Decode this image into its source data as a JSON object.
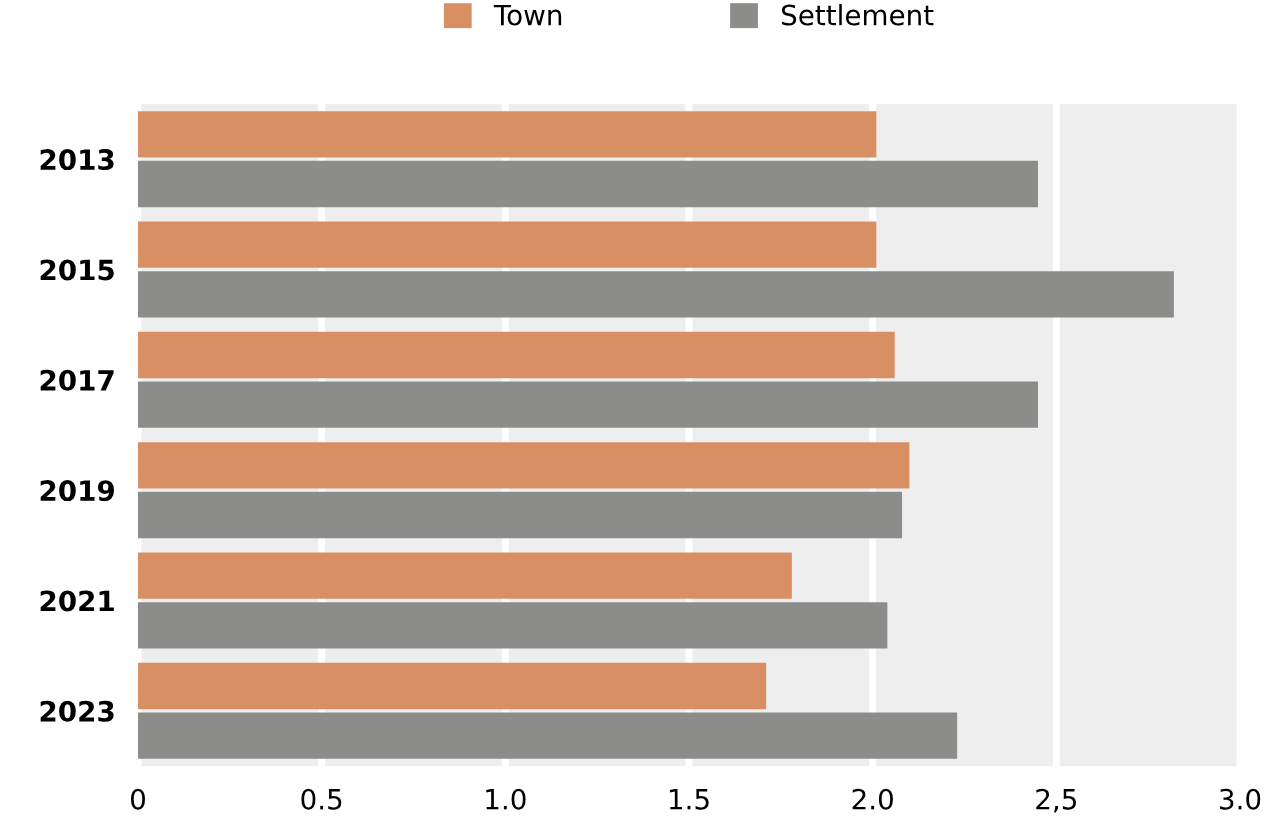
{
  "chart_data": {
    "type": "bar",
    "orientation": "horizontal",
    "categories": [
      "2013",
      "2015",
      "2017",
      "2019",
      "2021",
      "2023"
    ],
    "series": [
      {
        "name": "Town",
        "color": "#d98f64",
        "values": [
          2.01,
          2.01,
          2.06,
          2.1,
          1.78,
          1.71
        ]
      },
      {
        "name": "Settlement",
        "color": "#8c8d8a",
        "values": [
          2.45,
          2.82,
          2.45,
          2.08,
          2.04,
          2.23
        ]
      }
    ],
    "xlim": [
      0,
      3.0
    ],
    "xticks": [
      0,
      0.5,
      {
        "value": 1.0,
        "label": "1.0"
      },
      1.5,
      {
        "value": 2.0,
        "label": "2.0"
      },
      {
        "value": 2.5,
        "label": "2,5"
      },
      {
        "value": 3.0,
        "label": "3.0"
      }
    ],
    "grid": "x",
    "legend": "top"
  }
}
